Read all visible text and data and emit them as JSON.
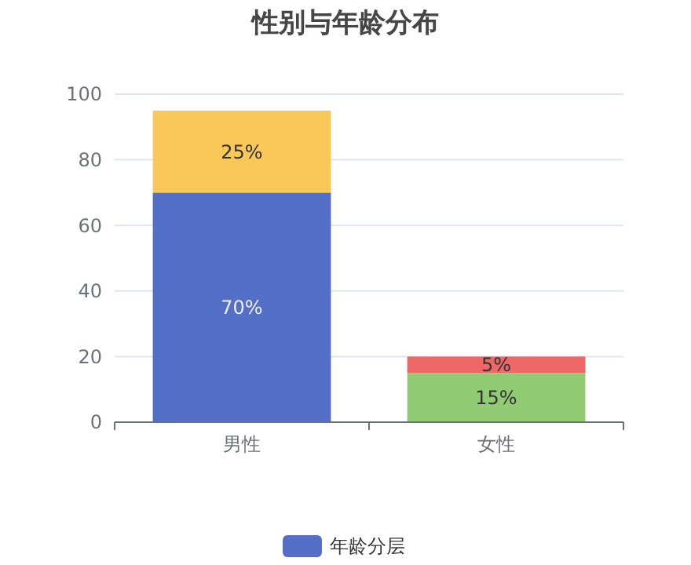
{
  "chart_data": {
    "type": "bar",
    "title": "性别与年龄分布",
    "categories": [
      "男性",
      "女性"
    ],
    "stacked": true,
    "series": [
      {
        "name": "年龄分层",
        "color": "#5470c6",
        "colors": [
          "#5470c6",
          "#91cc75"
        ],
        "values": [
          70,
          15
        ],
        "value_labels": [
          "70%",
          "15%"
        ]
      },
      {
        "colors": [
          "#fac858",
          "#ee6666"
        ],
        "values": [
          25,
          5
        ],
        "value_labels": [
          "25%",
          "5%"
        ]
      }
    ],
    "ylim": [
      0,
      100
    ],
    "yticks": [
      0,
      20,
      40,
      60,
      80,
      100
    ],
    "grid": "y",
    "legend": "bottom"
  }
}
